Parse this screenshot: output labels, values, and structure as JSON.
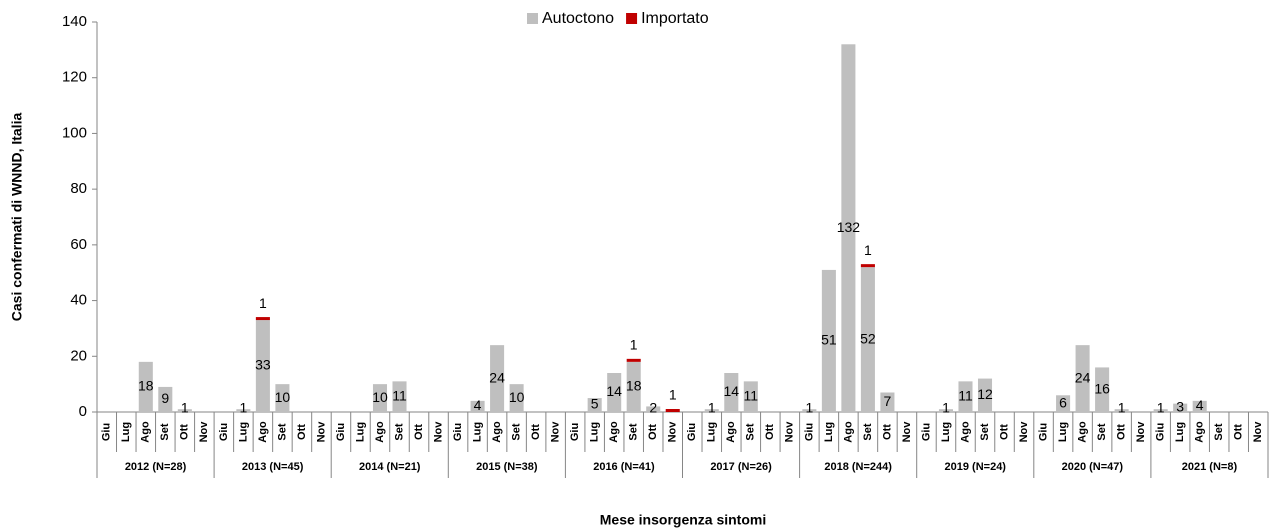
{
  "chart_data": {
    "type": "stacked_bar",
    "y_label": "Casi confermati di WNND, Italia",
    "x_label": "Mese insorgenza sintomi",
    "categories": [
      "Giu",
      "Lug",
      "Ago",
      "Set",
      "Ott",
      "Nov",
      "Giu",
      "Lug",
      "Ago",
      "Set",
      "Ott",
      "Nov",
      "Giu",
      "Lug",
      "Ago",
      "Set",
      "Ott",
      "Nov",
      "Giu",
      "Lug",
      "Ago",
      "Set",
      "Ott",
      "Nov",
      "Giu",
      "Lug",
      "Ago",
      "Set",
      "Ott",
      "Nov",
      "Giu",
      "Lug",
      "Ago",
      "Set",
      "Ott",
      "Nov",
      "Giu",
      "Lug",
      "Ago",
      "Set",
      "Ott",
      "Nov",
      "Giu",
      "Lug",
      "Ago",
      "Set",
      "Ott",
      "Nov",
      "Giu",
      "Lug",
      "Ago",
      "Set",
      "Ott",
      "Nov",
      "Giu",
      "Lug",
      "Ago",
      "Set",
      "Ott",
      "Nov"
    ],
    "category_groups": [
      "2012 (N=28)",
      "2013 (N=45)",
      "2014 (N=21)",
      "2015 (N=38)",
      "2016 (N=41)",
      "2017 (N=26)",
      "2018 (N=244)",
      "2019 (N=24)",
      "2020 (N=47)",
      "2021 (N=8)"
    ],
    "series": [
      {
        "name": "Autoctono",
        "color": "#bfbfbf",
        "values": [
          0,
          0,
          18,
          9,
          1,
          0,
          0,
          1,
          33,
          10,
          0,
          0,
          0,
          0,
          10,
          11,
          0,
          0,
          0,
          4,
          24,
          10,
          0,
          0,
          0,
          5,
          14,
          18,
          2,
          0,
          0,
          1,
          14,
          11,
          0,
          0,
          1,
          51,
          132,
          52,
          7,
          0,
          0,
          1,
          11,
          12,
          0,
          0,
          0,
          6,
          24,
          16,
          1,
          0,
          1,
          3,
          4,
          0,
          0,
          0
        ]
      },
      {
        "name": "Importato",
        "color": "#c00000",
        "values": [
          0,
          0,
          0,
          0,
          0,
          0,
          0,
          0,
          1,
          0,
          0,
          0,
          0,
          0,
          0,
          0,
          0,
          0,
          0,
          0,
          0,
          0,
          0,
          0,
          0,
          0,
          0,
          1,
          0,
          1,
          0,
          0,
          0,
          0,
          0,
          0,
          0,
          0,
          0,
          1,
          0,
          0,
          0,
          0,
          0,
          0,
          0,
          0,
          0,
          0,
          0,
          0,
          0,
          0,
          0,
          0,
          0,
          0,
          0,
          0
        ]
      }
    ],
    "ylim": [
      0,
      140
    ],
    "yticks": [
      0,
      20,
      40,
      60,
      80,
      100,
      120,
      140
    ],
    "grid": false,
    "legend": "top"
  }
}
